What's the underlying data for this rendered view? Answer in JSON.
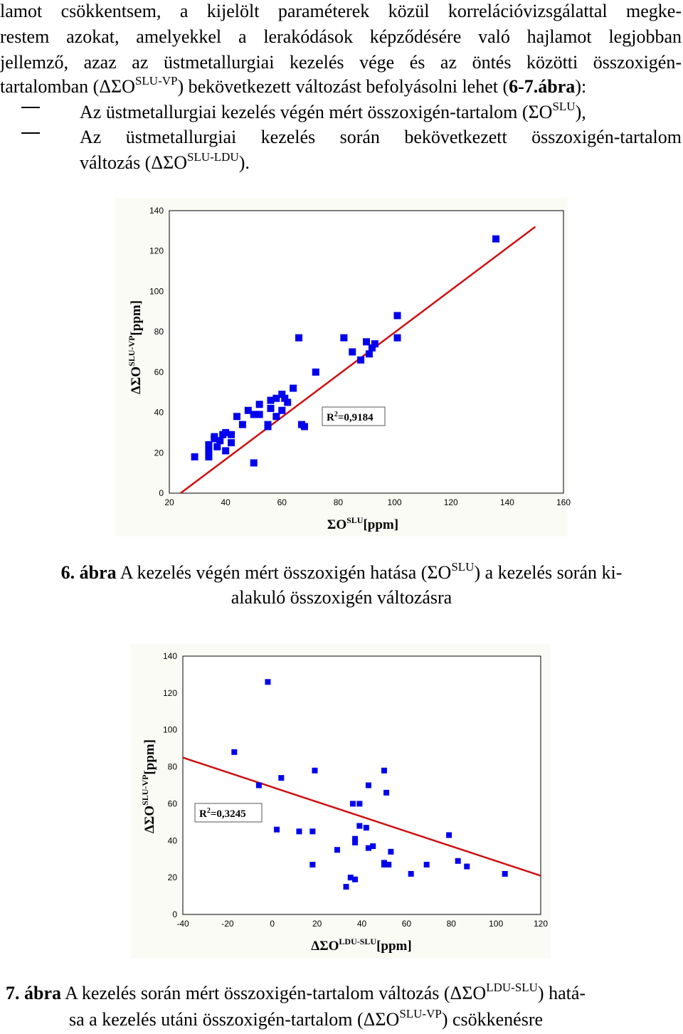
{
  "text": {
    "line1": "lamot csökkentsem, a kijelölt paraméterek közül korrelációvizsgálattal megke-",
    "line2": "restem azokat, amelyekkel a lerakódások képződésére való hajlamot legjobban",
    "line3": "jellemző, azaz az üstmetallurgiai kezelés vége és az öntés közötti összoxigén-",
    "line4_a": "tartalomban (ΔΣO",
    "line4_sup": "SLU-VP",
    "line4_b": ") bekövetkezett változást befolyásolni lehet (",
    "line4_ref": "6-7.ábra",
    "line4_c": "):",
    "bullet1_a": "Az üstmetallurgiai kezelés végén mért összoxigén-tartalom (ΣO",
    "bullet1_sup": "SLU",
    "bullet1_b": "),",
    "bullet2": "Az üstmetallurgiai kezelés során bekövetkezett összoxigén-tartalom",
    "bullet2_cont_a": "változás (ΔΣO",
    "bullet2_cont_sup": "SLU-LDU",
    "bullet2_cont_b": ").",
    "caption6_num": "6. ábra",
    "caption6_a": " A kezelés végén mért összoxigén hatása (ΣO",
    "caption6_sup": "SLU",
    "caption6_b": ") a kezelés során ki-",
    "caption6_line2": "alakuló összoxigén változásra",
    "caption7_num": "7. ábra",
    "caption7_a": " A kezelés során mért összoxigén-tartalom változás (ΔΣO",
    "caption7_sup": "LDU-SLU",
    "caption7_b": ") hatá-",
    "caption7_line2_a": "sa a kezelés utáni összoxigén-tartalom (ΔΣO",
    "caption7_line2_sup": "SLU-VP",
    "caption7_line2_b": ") csökkenésre"
  },
  "chart_data": [
    {
      "type": "scatter",
      "title": "",
      "xlabel": "ΣO",
      "xlabel_sup": "SLU",
      "xlabel_unit": "[ppm]",
      "ylabel": "ΔΣO",
      "ylabel_sup": "SLU-VP",
      "ylabel_unit": "[ppm]",
      "xlim": [
        20,
        160
      ],
      "ylim": [
        0,
        140
      ],
      "xticks": [
        "20",
        "40",
        "60",
        "80",
        "100",
        "120",
        "140",
        "160"
      ],
      "yticks": [
        "0",
        "20",
        "40",
        "60",
        "80",
        "100",
        "120",
        "140"
      ],
      "annotation": "R",
      "annotation_sup": "2",
      "annotation_value": "=0,9184",
      "marker_color": "#0000ee",
      "line_color": "#cc1111",
      "fit_line": {
        "x": [
          24,
          150
        ],
        "y": [
          0,
          132
        ]
      },
      "points": [
        [
          136,
          126
        ],
        [
          101,
          88
        ],
        [
          101,
          77
        ],
        [
          82,
          77
        ],
        [
          90,
          75
        ],
        [
          85,
          70
        ],
        [
          93,
          74
        ],
        [
          91,
          69
        ],
        [
          92,
          72
        ],
        [
          88,
          66
        ],
        [
          66,
          77
        ],
        [
          72,
          60
        ],
        [
          64,
          52
        ],
        [
          60,
          49
        ],
        [
          58,
          47
        ],
        [
          61,
          47
        ],
        [
          56,
          46
        ],
        [
          62,
          45
        ],
        [
          52,
          44
        ],
        [
          56,
          42
        ],
        [
          60,
          41
        ],
        [
          48,
          41
        ],
        [
          50,
          39
        ],
        [
          52,
          39
        ],
        [
          44,
          38
        ],
        [
          46,
          34
        ],
        [
          58,
          38
        ],
        [
          55,
          34
        ],
        [
          55,
          33
        ],
        [
          67,
          34
        ],
        [
          68,
          33
        ],
        [
          40,
          30
        ],
        [
          36,
          28
        ],
        [
          42,
          29
        ],
        [
          39,
          29
        ],
        [
          36,
          27
        ],
        [
          38,
          26
        ],
        [
          42,
          25
        ],
        [
          34,
          24
        ],
        [
          37,
          23
        ],
        [
          40,
          21
        ],
        [
          34,
          18
        ],
        [
          29,
          18
        ],
        [
          34,
          21
        ],
        [
          50,
          15
        ]
      ]
    },
    {
      "type": "scatter",
      "title": "",
      "xlabel": "ΔΣO",
      "xlabel_sup": "LDU-SLU",
      "xlabel_unit": "[ppm]",
      "ylabel": "ΔΣO",
      "ylabel_sup": "SLU-VP",
      "ylabel_unit": "[ppm]",
      "xlim": [
        -40,
        120
      ],
      "ylim": [
        0,
        140
      ],
      "xticks": [
        "-40",
        "-20",
        "0",
        "20",
        "40",
        "60",
        "80",
        "100",
        "120"
      ],
      "yticks": [
        "0",
        "20",
        "40",
        "60",
        "80",
        "100",
        "120",
        "140"
      ],
      "annotation": "R",
      "annotation_sup": "2",
      "annotation_value": "=0,3245",
      "marker_color": "#0000ee",
      "line_color": "#cc1111",
      "fit_line": {
        "x": [
          -40,
          120
        ],
        "y": [
          85,
          21
        ]
      },
      "points": [
        [
          -2,
          126
        ],
        [
          -17,
          88
        ],
        [
          -6,
          70
        ],
        [
          4,
          74
        ],
        [
          19,
          78
        ],
        [
          50,
          78
        ],
        [
          43,
          70
        ],
        [
          51,
          66
        ],
        [
          36,
          60
        ],
        [
          39,
          60
        ],
        [
          2,
          46
        ],
        [
          12,
          45
        ],
        [
          18,
          45
        ],
        [
          39,
          48
        ],
        [
          42,
          47
        ],
        [
          37,
          41
        ],
        [
          37,
          39
        ],
        [
          43,
          36
        ],
        [
          45,
          37
        ],
        [
          29,
          35
        ],
        [
          53,
          34
        ],
        [
          18,
          27
        ],
        [
          50,
          28
        ],
        [
          50,
          27
        ],
        [
          52,
          27
        ],
        [
          79,
          43
        ],
        [
          83,
          29
        ],
        [
          87,
          26
        ],
        [
          62,
          22
        ],
        [
          69,
          27
        ],
        [
          104,
          22
        ],
        [
          35,
          20
        ],
        [
          37,
          19
        ],
        [
          33,
          15
        ]
      ]
    }
  ]
}
